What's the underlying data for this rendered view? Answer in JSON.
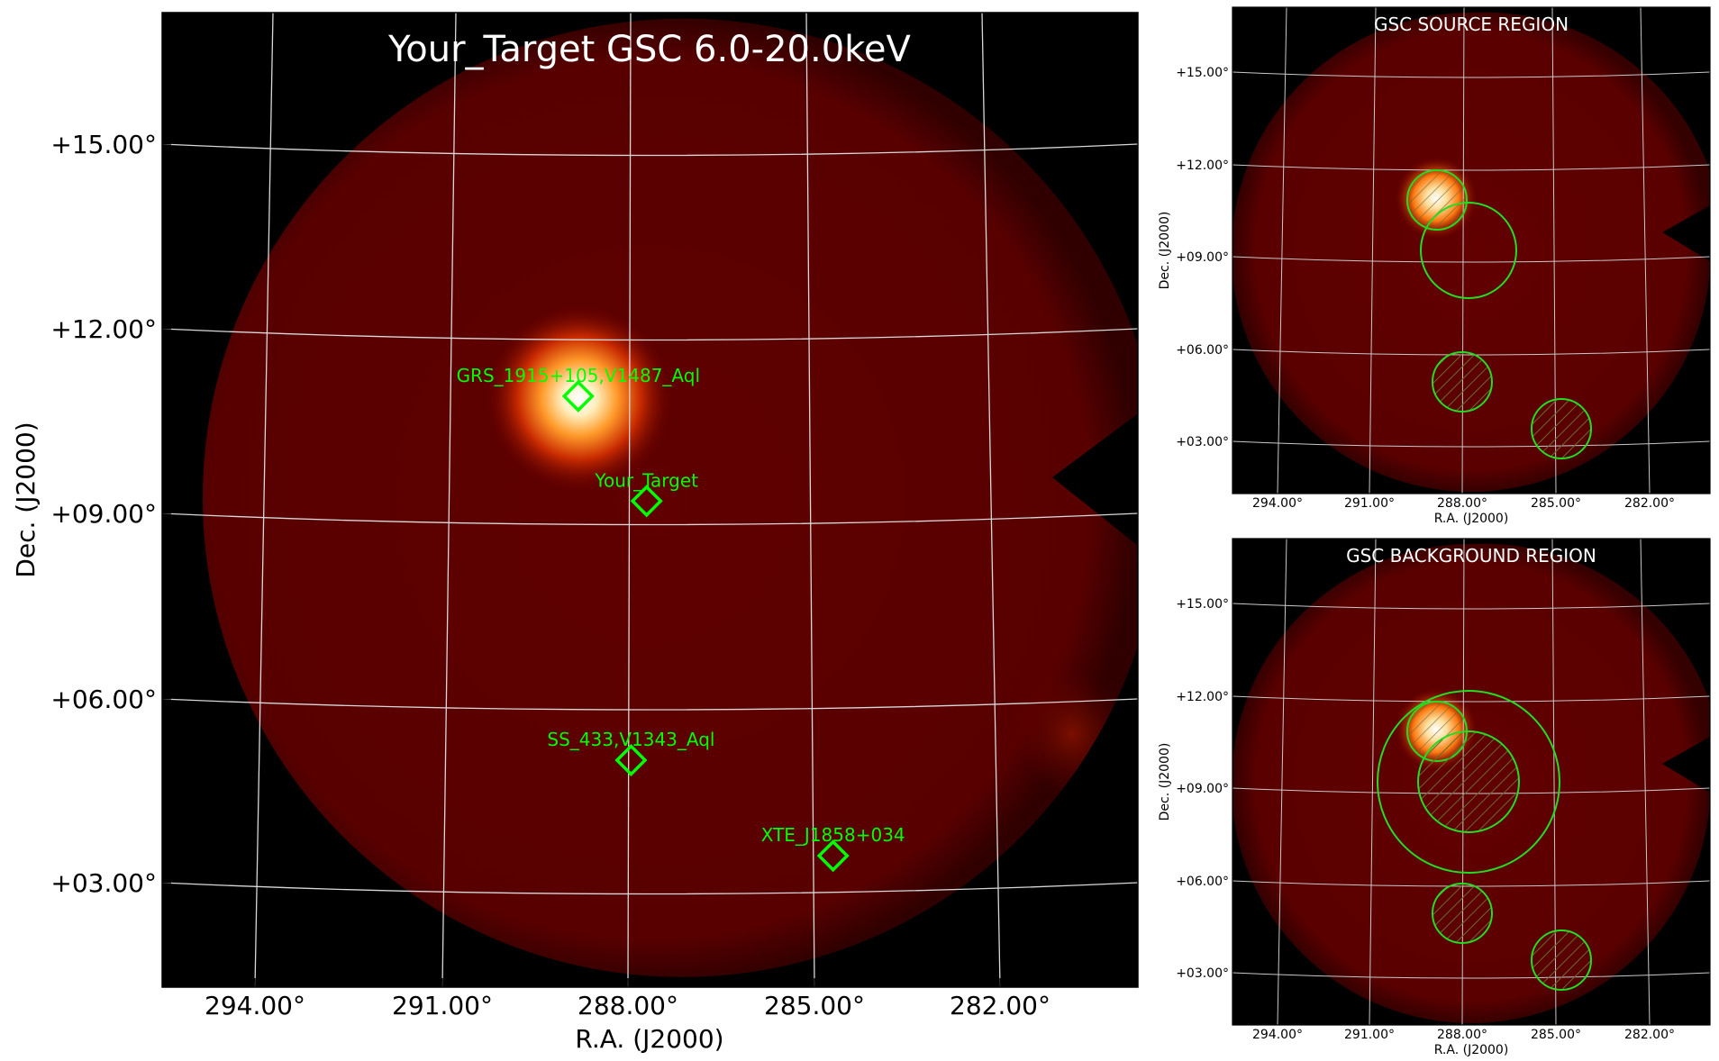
{
  "colors": {
    "field": "#5a0000",
    "field_edge": "#4a0000",
    "sky_background": "#000000",
    "grid": "#d9d9d9",
    "marker": "#00ff00",
    "title_text": "#ffffff",
    "region": "#22dd22"
  },
  "main": {
    "title": "Your_Target GSC 6.0-20.0keV",
    "xlabel": "R.A. (J2000)",
    "ylabel": "Dec. (J2000)",
    "ra_ticks": [
      "294.00°",
      "291.00°",
      "288.00°",
      "285.00°",
      "282.00°"
    ],
    "dec_ticks": [
      "+15.00°",
      "+12.00°",
      "+09.00°",
      "+06.00°",
      "+03.00°"
    ],
    "sources": [
      {
        "label": "GRS_1915+105,V1487_Aql",
        "ra": 288.8,
        "dec": 10.9
      },
      {
        "label": "Your_Target",
        "ra": 287.7,
        "dec": 9.2
      },
      {
        "label": "SS_433,V1343_Aql",
        "ra": 287.95,
        "dec": 5.0
      },
      {
        "label": "XTE_J1858+034",
        "ra": 284.7,
        "dec": 3.45
      }
    ]
  },
  "source_region": {
    "title": "GSC SOURCE REGION",
    "xlabel": "R.A. (J2000)",
    "ylabel": "Dec. (J2000)",
    "ra_ticks": [
      "294.00°",
      "291.00°",
      "288.00°",
      "285.00°",
      "282.00°"
    ],
    "dec_ticks": [
      "+15.00°",
      "+12.00°",
      "+09.00°",
      "+06.00°",
      "+03.00°"
    ]
  },
  "background_region": {
    "title": "GSC BACKGROUND REGION",
    "xlabel": "R.A. (J2000)",
    "ylabel": "Dec. (J2000)",
    "ra_ticks": [
      "294.00°",
      "291.00°",
      "288.00°",
      "285.00°",
      "282.00°"
    ],
    "dec_ticks": [
      "+15.00°",
      "+12.00°",
      "+09.00°",
      "+06.00°",
      "+03.00°"
    ]
  }
}
